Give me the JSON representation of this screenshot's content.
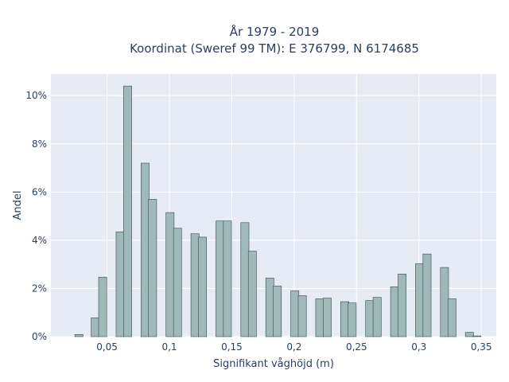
{
  "chart_data": {
    "type": "bar",
    "title_line1": "År 1979 - 2019",
    "title_line2": "Koordinat (Sweref 99 TM): E 376799, N 6174685",
    "xlabel": "Signifikant våghöjd (m)",
    "ylabel": "Andel",
    "xlim": [
      0.005,
      0.362
    ],
    "ylim": [
      0,
      0.109
    ],
    "grid": true,
    "bar_width": 0.0065,
    "x_ticks": [
      {
        "value": 0.05,
        "label": "0,05"
      },
      {
        "value": 0.1,
        "label": "0,1"
      },
      {
        "value": 0.15,
        "label": "0,15"
      },
      {
        "value": 0.2,
        "label": "0,2"
      },
      {
        "value": 0.25,
        "label": "0,25"
      },
      {
        "value": 0.3,
        "label": "0,3"
      },
      {
        "value": 0.35,
        "label": "0,35"
      }
    ],
    "y_ticks": [
      {
        "value": 0,
        "label": "0%"
      },
      {
        "value": 0.02,
        "label": "2%"
      },
      {
        "value": 0.04,
        "label": "4%"
      },
      {
        "value": 0.06,
        "label": "6%"
      },
      {
        "value": 0.08,
        "label": "8%"
      },
      {
        "value": 0.1,
        "label": "10%"
      }
    ],
    "bar_color": "#9fb8b8",
    "bar_edge_color": "#3a4a4a",
    "x": [
      0.0275,
      0.0405,
      0.0465,
      0.0605,
      0.0665,
      0.0805,
      0.0865,
      0.1005,
      0.1065,
      0.1205,
      0.1265,
      0.1405,
      0.1465,
      0.1605,
      0.1665,
      0.1805,
      0.1865,
      0.2005,
      0.2065,
      0.2205,
      0.2265,
      0.2405,
      0.2465,
      0.2605,
      0.2665,
      0.2805,
      0.2865,
      0.3005,
      0.3065,
      0.3205,
      0.3265,
      0.3405,
      0.3465
    ],
    "values": [
      0.0009,
      0.0078,
      0.0247,
      0.0435,
      0.104,
      0.072,
      0.057,
      0.0515,
      0.045,
      0.0427,
      0.0413,
      0.048,
      0.048,
      0.0473,
      0.0355,
      0.0243,
      0.021,
      0.019,
      0.017,
      0.0157,
      0.016,
      0.0145,
      0.014,
      0.015,
      0.0163,
      0.0207,
      0.026,
      0.0303,
      0.0343,
      0.0287,
      0.0157,
      0.0018,
      0.0003
    ]
  }
}
